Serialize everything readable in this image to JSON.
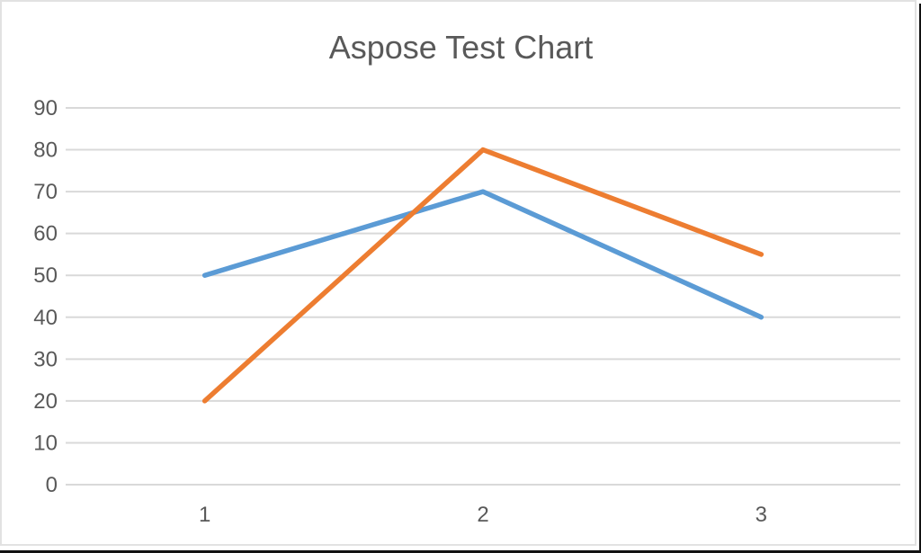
{
  "chart_data": {
    "type": "line",
    "title": "Aspose Test Chart",
    "categories": [
      "1",
      "2",
      "3"
    ],
    "series": [
      {
        "color": "#5B9BD5",
        "values": [
          50,
          70,
          40
        ]
      },
      {
        "color": "#ED7D31",
        "values": [
          20,
          80,
          55
        ]
      }
    ],
    "xlabel": "",
    "ylabel": "",
    "ylim": [
      0,
      90
    ],
    "yticks": [
      0,
      10,
      20,
      30,
      40,
      50,
      60,
      70,
      80,
      90
    ],
    "grid": "horizontal",
    "legend": "none",
    "colors": {
      "title_text": "#595959",
      "axis_text": "#595959",
      "gridline": "#d9d9d9",
      "background": "#ffffff"
    }
  }
}
